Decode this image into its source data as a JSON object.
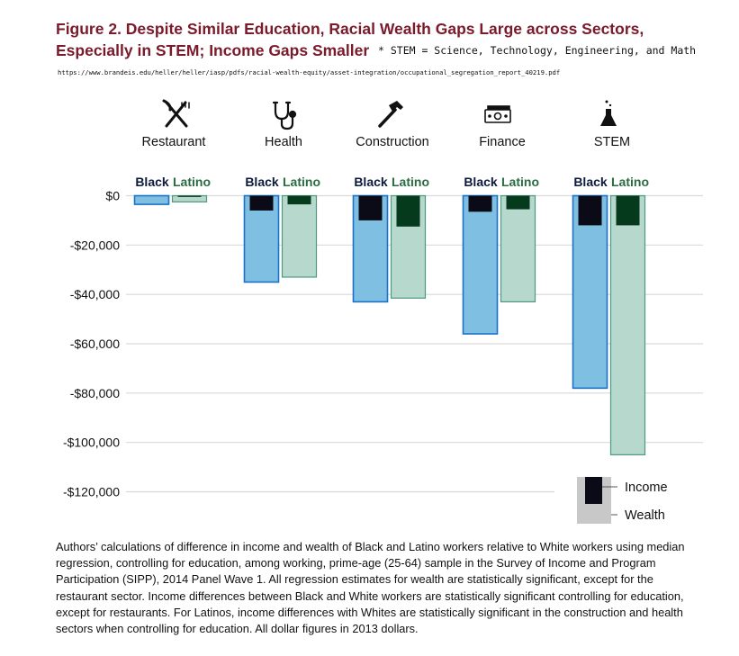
{
  "title": {
    "line1": "Figure 2. Despite Similar Education, Racial Wealth Gaps Large across Sectors,",
    "line2": "Especially in STEM; Income Gaps Smaller"
  },
  "note": "* STEM = Science, Technology, Engineering, and Math",
  "source_url": "https://www.brandeis.edu/heller/heller/iasp/pdfs/racial-wealth-equity/asset-integration/occupational_segregation_report_40219.pdf",
  "icons": [
    "fork-knife-icon",
    "stethoscope-icon",
    "hammer-icon",
    "money-icon",
    "flask-icon"
  ],
  "colors": {
    "black_wealth": "#7fc0e2",
    "black_wealth_border": "#1a72c9",
    "latino_wealth": "#b7d8cd",
    "latino_wealth_border": "#4d9a80",
    "black_income": "#0b0b18",
    "latino_income": "#053a1c",
    "black_label": "#0d1a3c",
    "latino_label": "#2a6b42",
    "gridline": "#d9d9d9",
    "title": "#7a1a2a"
  },
  "chart_data": {
    "type": "bar",
    "categories": [
      "Restaurant",
      "Health",
      "Construction",
      "Finance",
      "STEM"
    ],
    "groups": [
      "Black",
      "Latino"
    ],
    "series": [
      {
        "name": "Wealth",
        "group": "Black",
        "values": [
          -3500,
          -35000,
          -43000,
          -56000,
          -78000
        ]
      },
      {
        "name": "Wealth",
        "group": "Latino",
        "values": [
          -2500,
          -33000,
          -41500,
          -43000,
          -105000
        ]
      },
      {
        "name": "Income",
        "group": "Black",
        "values": [
          0,
          -6000,
          -10000,
          -6500,
          -12000
        ]
      },
      {
        "name": "Income",
        "group": "Latino",
        "values": [
          -500,
          -3500,
          -12500,
          -5500,
          -12000
        ]
      }
    ],
    "yticks": [
      "$0",
      "-$20,000",
      "-$40,000",
      "-$60,000",
      "-$80,000",
      "-$100,000",
      "-$120,000"
    ],
    "ytick_values": [
      0,
      -20000,
      -40000,
      -60000,
      -80000,
      -100000,
      -120000
    ],
    "ylim": [
      -120000,
      0
    ],
    "legend": {
      "items": [
        "Income",
        "Wealth"
      ],
      "placement": "bottom-right"
    },
    "grid": true
  },
  "caption": "Authors’ calculations of difference in income and wealth of Black and Latino workers relative to White workers using median regression, controlling for education, among working, prime-age (25-64) sample in the Survey of Income and Program Participation (SIPP), 2014 Panel Wave 1.  All regression estimates for wealth are statistically significant, except for the restaurant sector.  Income differences between Black and White workers are statistically significant controlling for education, except for restaurants. For Latinos, income differences with Whites are statistically significant in the construction and health sectors when controlling for education. All dollar figures in 2013 dollars."
}
